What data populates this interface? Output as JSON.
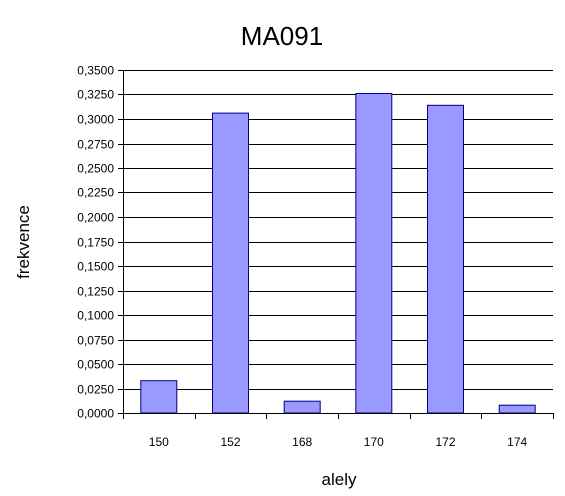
{
  "chart_data": {
    "type": "bar",
    "title": "MA091",
    "xlabel": "alely",
    "ylabel": "frekvence",
    "categories": [
      "150",
      "152",
      "168",
      "170",
      "172",
      "174"
    ],
    "values": [
      0.033,
      0.306,
      0.012,
      0.326,
      0.314,
      0.008
    ],
    "ylim": [
      0,
      0.35
    ],
    "yticks": [
      "0,0000",
      "0,0250",
      "0,0500",
      "0,0750",
      "0,1000",
      "0,1250",
      "0,1500",
      "0,1750",
      "0,2000",
      "0,2250",
      "0,2500",
      "0,2750",
      "0,3000",
      "0,3250",
      "0,3500"
    ],
    "grid": true,
    "legend": "none",
    "bar_color": "#9999ff",
    "bar_stroke": "#000080"
  }
}
